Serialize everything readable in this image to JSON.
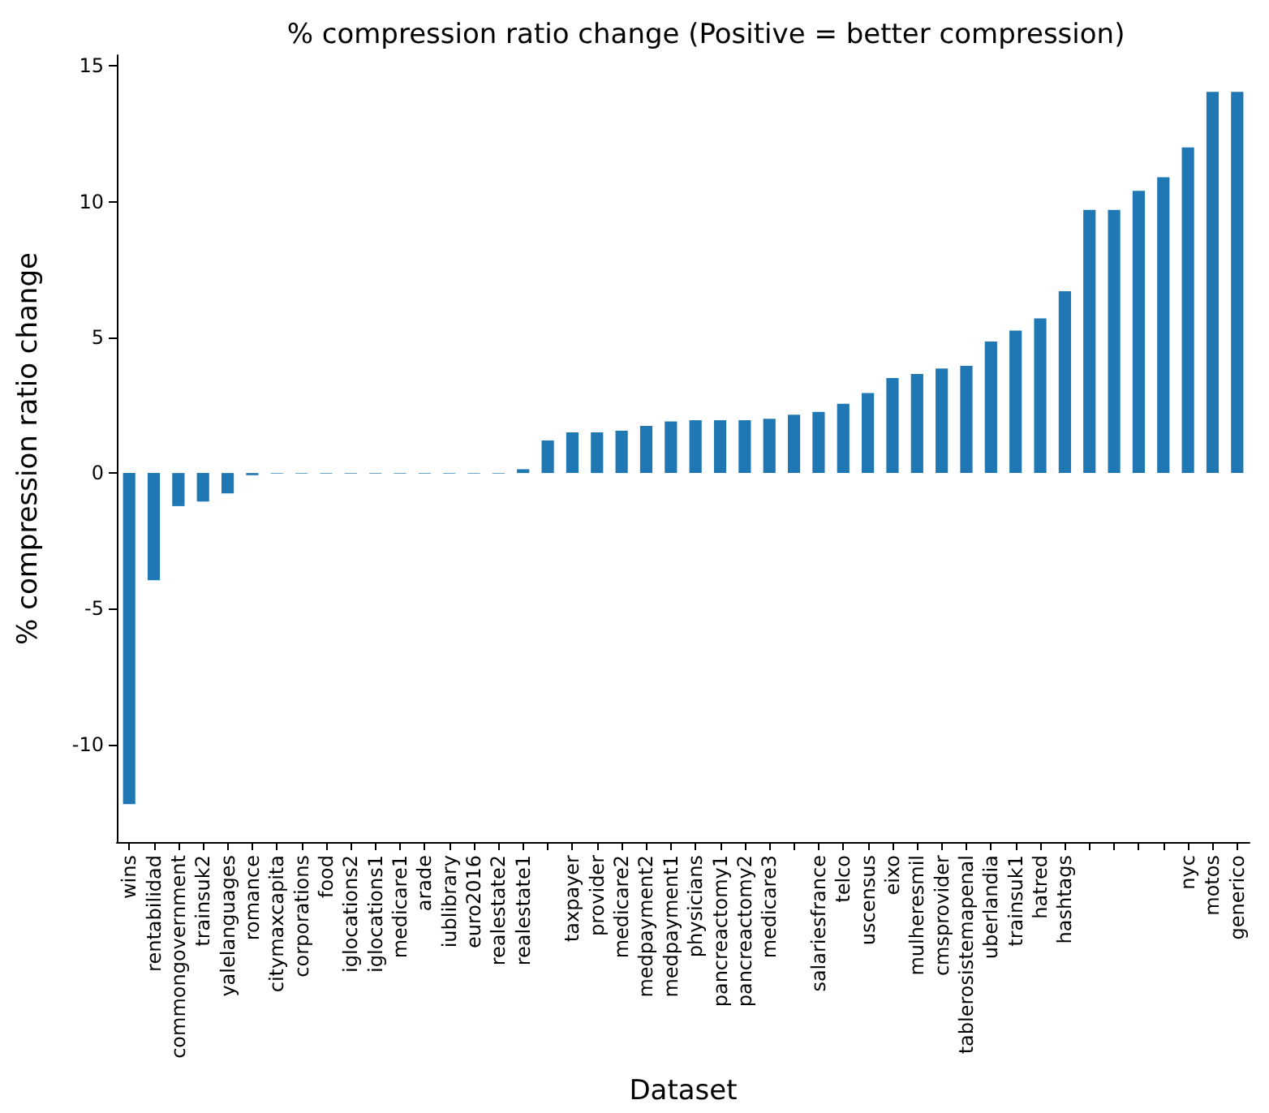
{
  "chart_data": {
    "type": "bar",
    "title": "% compression ratio change (Positive = better compression)",
    "xlabel": "Dataset",
    "ylabel": "% compression ratio change",
    "categories": [
      "wins",
      "rentabilidad",
      "commongovernment",
      "trainsuk2",
      "yalelanguages",
      "romance",
      "citymaxcapita",
      "corporations",
      "food",
      "iglocations2",
      "iglocations1",
      "medicare1",
      "arade",
      "iublibrary",
      "euro2016",
      "realestate2",
      "realestate1",
      null,
      "taxpayer",
      "provider",
      "medicare2",
      "medpayment2",
      "medpayment1",
      "physicians",
      "pancreactomy1",
      "pancreactomy2",
      "medicare3",
      null,
      "salariesfrance",
      "telco",
      "uscensus",
      "eixo",
      "mulheresmil",
      "cmsprovider",
      "tablerosistemapenal",
      "uberlandia",
      "trainsuk1",
      "hatred",
      "hashtags",
      null,
      null,
      null,
      null,
      "nyc",
      "motos",
      "generico"
    ],
    "values": [
      -12.2,
      -3.95,
      -1.22,
      -1.05,
      -0.75,
      -0.08,
      -0.02,
      -0.02,
      -0.02,
      -0.02,
      -0.02,
      -0.02,
      -0.02,
      -0.02,
      -0.02,
      -0.02,
      0.14,
      1.2,
      1.5,
      1.5,
      1.56,
      1.74,
      1.9,
      1.95,
      1.95,
      1.95,
      2.0,
      2.15,
      2.25,
      2.55,
      2.95,
      3.5,
      3.65,
      3.85,
      3.95,
      4.85,
      5.25,
      5.7,
      6.7,
      9.7,
      9.7,
      10.4,
      10.9,
      12.0,
      14.05,
      14.05
    ],
    "color": "#1f77b4",
    "ylim": [
      -13.6,
      15.4
    ],
    "yticks": [
      -10,
      -5,
      0,
      5,
      10,
      15
    ]
  }
}
